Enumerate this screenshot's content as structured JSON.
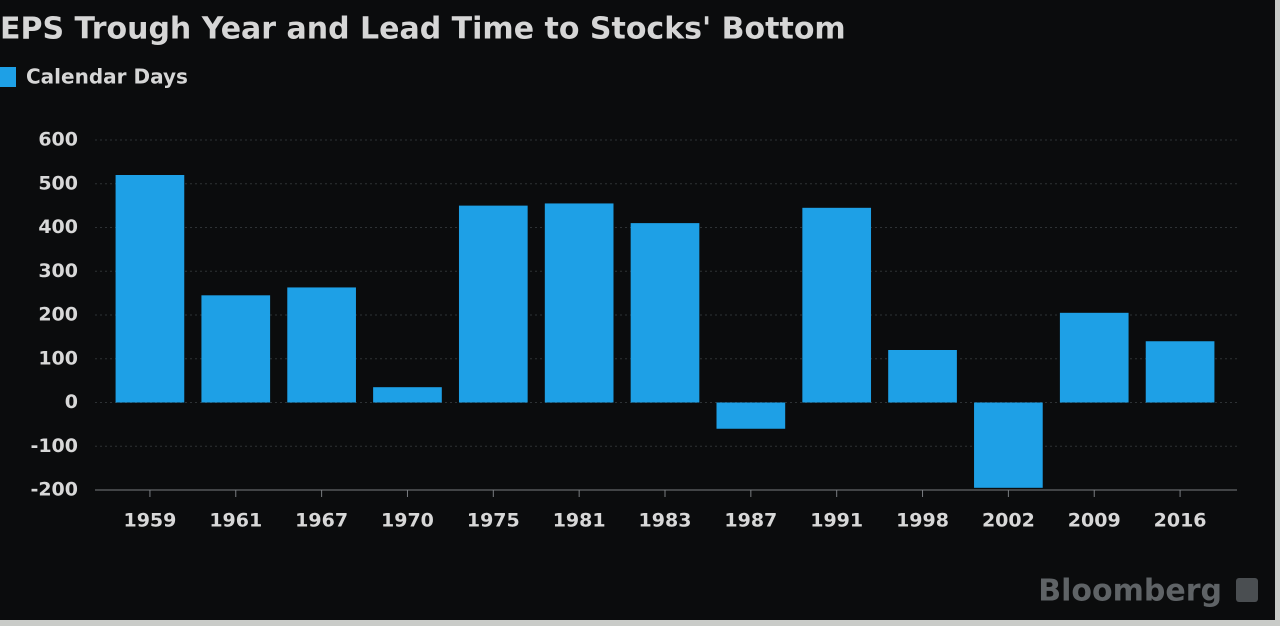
{
  "chart_data": {
    "type": "bar",
    "title": "EPS Trough Year and Lead Time to Stocks' Bottom",
    "legend": "Calendar Days",
    "categories": [
      "1959",
      "1961",
      "1967",
      "1970",
      "1975",
      "1981",
      "1983",
      "1987",
      "1991",
      "1998",
      "2002",
      "2009",
      "2016"
    ],
    "values": [
      520,
      245,
      263,
      35,
      450,
      455,
      410,
      -60,
      445,
      120,
      -195,
      205,
      140
    ],
    "color": "#1ea0e6",
    "ylim": [
      -200,
      600
    ],
    "yticks": [
      -200,
      -100,
      0,
      100,
      200,
      300,
      400,
      500,
      600
    ],
    "grid": true,
    "source": "Bloomberg"
  }
}
